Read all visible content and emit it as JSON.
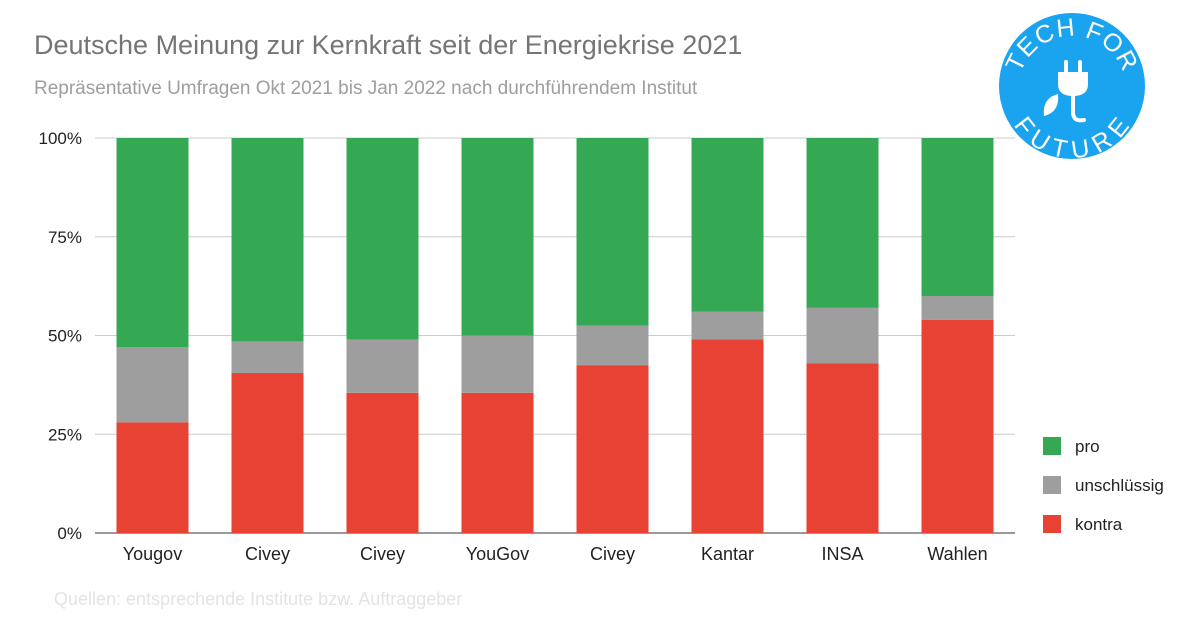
{
  "header": {
    "title": "Deutsche Meinung zur Kernkraft seit der Energiekrise 2021",
    "subtitle": "Repräsentative Umfragen Okt 2021 bis Jan 2022 nach durchführendem Institut"
  },
  "footer": {
    "source": "Quellen: entsprechende Institute bzw. Auftraggeber"
  },
  "logo": {
    "line1": "TECH FOR",
    "line2": "FUTURE",
    "color": "#1aa3ee",
    "icon": "plug-leaf-icon"
  },
  "chart_data": {
    "type": "bar",
    "stacked": true,
    "percent": true,
    "categories": [
      "Yougov",
      "Civey",
      "Civey",
      "YouGov",
      "Civey",
      "Kantar",
      "INSA",
      "Wahlen"
    ],
    "series": [
      {
        "name": "kontra",
        "color": "#e84235",
        "values": [
          28,
          40.5,
          35.5,
          35.5,
          42.5,
          49,
          43,
          54
        ]
      },
      {
        "name": "unschlüssig",
        "color": "#9e9e9e",
        "values": [
          19,
          8,
          13.5,
          14.5,
          10,
          7,
          14,
          6
        ]
      },
      {
        "name": "pro",
        "color": "#34a853",
        "values": [
          53,
          51.5,
          51,
          50,
          47.5,
          44,
          43,
          40
        ]
      }
    ],
    "ylim": [
      0,
      100
    ],
    "yticks": [
      "0%",
      "25%",
      "50%",
      "75%",
      "100%"
    ],
    "ytick_values": [
      0,
      25,
      50,
      75,
      100
    ],
    "grid": true,
    "legend": {
      "position": "right",
      "entries": [
        "pro",
        "unschlüssig",
        "kontra"
      ]
    }
  }
}
